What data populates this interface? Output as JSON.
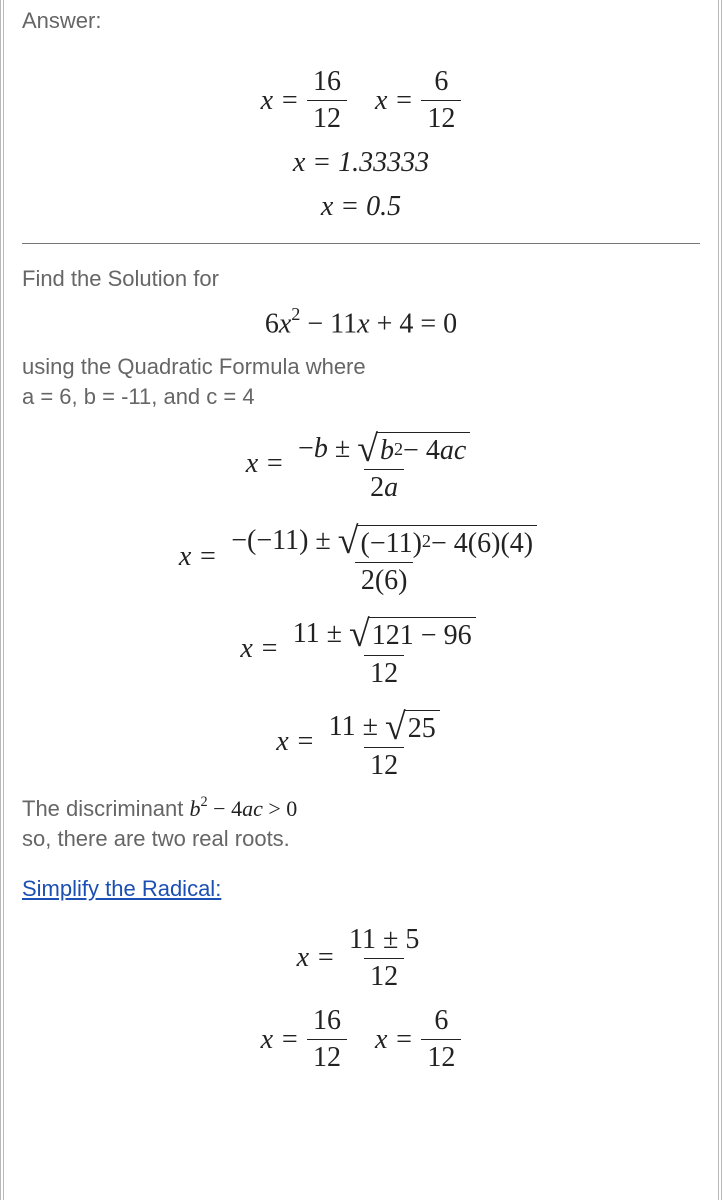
{
  "colors": {
    "border": "#b8b8b8",
    "body_text": "#666666",
    "math_text": "#222222",
    "link": "#1c4fb3",
    "rule": "#777777",
    "background": "#ffffff"
  },
  "fonts": {
    "body_family": "Arial, Helvetica, sans-serif",
    "body_size_pt": 16,
    "math_family": "Times New Roman, Times, serif",
    "math_size_pt": 21
  },
  "labels": {
    "answer": "Answer:",
    "find_solution": "Find the Solution for",
    "using_formula": "using the Quadratic Formula where",
    "coeffs": "a = 6, b = -11, and c = 4",
    "discriminant_pre": "The discriminant ",
    "discriminant_post": "so, there are two real roots.",
    "simplify_link": "Simplify the Radical:"
  },
  "equations": {
    "answer_pair": {
      "x_eq": "x =",
      "frac1_num": "16",
      "frac1_den": "12",
      "frac2_num": "6",
      "frac2_den": "12"
    },
    "answer_dec1": "x = 1.33333",
    "answer_dec2": "x = 0.5",
    "quadratic": {
      "lhs": "6",
      "x2": "x",
      "exp": "2",
      "mid": " − 11",
      "x": "x",
      "tail": " + 4 = 0"
    },
    "formula": {
      "x_eq": "x =",
      "num_pre": "−",
      "b": "b",
      "pm": " ± ",
      "rad_b": "b",
      "rad_exp": "2",
      "rad_mid": " − 4",
      "rad_a": "a",
      "rad_c": "c",
      "den": "2",
      "den_a": "a"
    },
    "step1": {
      "x_eq": "x =",
      "num_pre": "−(−11) ± ",
      "rad": "(−11)",
      "rad_exp": "2",
      "rad_tail": " − 4(6)(4)",
      "den": "2(6)"
    },
    "step2": {
      "x_eq": "x =",
      "num_pre": "11 ± ",
      "rad": "121 − 96",
      "den": "12"
    },
    "step3": {
      "x_eq": "x =",
      "num_pre": "11 ± ",
      "rad": "25",
      "den": "12"
    },
    "disc": {
      "b": "b",
      "exp": "2",
      "mid": " − 4",
      "a": "a",
      "c": "c",
      "cmp": " > 0"
    },
    "simp1": {
      "x_eq": "x =",
      "num": "11 ± 5",
      "den": "12"
    },
    "simp_pair": {
      "x_eq": "x =",
      "frac1_num": "16",
      "frac1_den": "12",
      "frac2_num": "6",
      "frac2_den": "12"
    }
  }
}
